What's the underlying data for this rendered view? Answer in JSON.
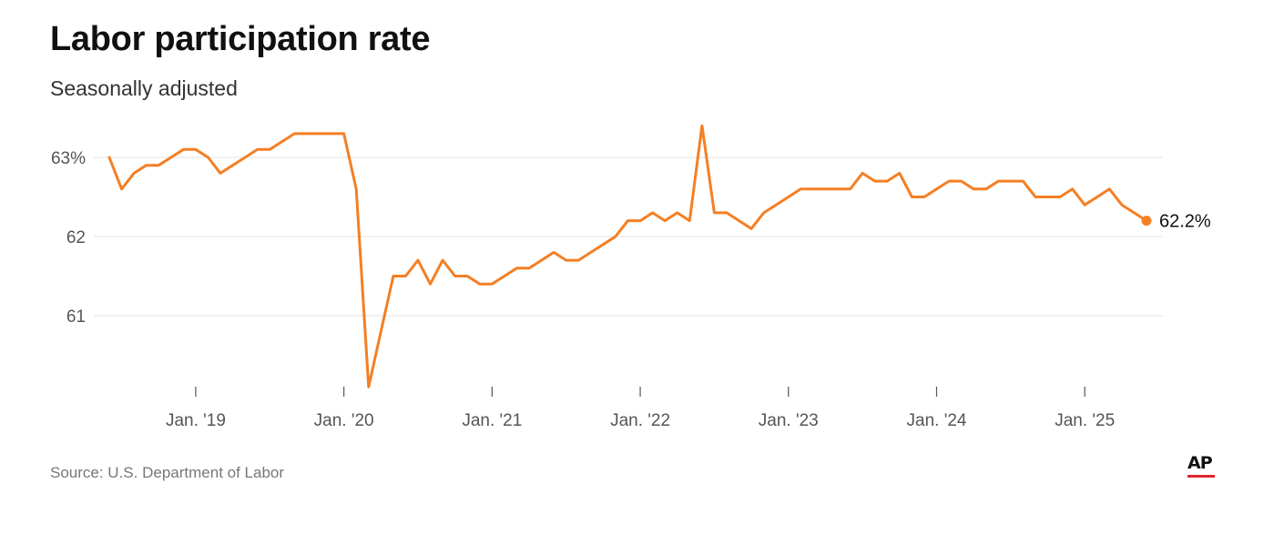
{
  "title": "Labor participation rate",
  "subtitle": "Seasonally adjusted",
  "source": "Source: U.S. Department of Labor",
  "logo": "AP",
  "colors": {
    "line": "#f47f24",
    "grid": "#e2e2e2",
    "axis_text": "#555555",
    "logo_bar": "#e5262b"
  },
  "chart_data": {
    "type": "line",
    "title": "Labor participation rate",
    "subtitle": "Seasonally adjusted",
    "xlabel": "",
    "ylabel": "",
    "ylim": [
      60.0,
      63.4
    ],
    "xlim": [
      "2018-06",
      "2025-07"
    ],
    "y_ticks": [
      {
        "value": 63,
        "label": "63%"
      },
      {
        "value": 62,
        "label": "62"
      },
      {
        "value": 61,
        "label": "61"
      }
    ],
    "x_ticks": [
      {
        "date": "2019-01",
        "label": "Jan. '19"
      },
      {
        "date": "2020-01",
        "label": "Jan. '20"
      },
      {
        "date": "2021-01",
        "label": "Jan. '21"
      },
      {
        "date": "2022-01",
        "label": "Jan. '22"
      },
      {
        "date": "2023-01",
        "label": "Jan. '23"
      },
      {
        "date": "2024-01",
        "label": "Jan. '24"
      },
      {
        "date": "2025-01",
        "label": "Jan. '25"
      }
    ],
    "grid": true,
    "end_label": "62.2%",
    "series": [
      {
        "points": [
          [
            "2018-06",
            63.0
          ],
          [
            "2018-07",
            62.6
          ],
          [
            "2018-08",
            62.8
          ],
          [
            "2018-09",
            62.9
          ],
          [
            "2018-10",
            62.9
          ],
          [
            "2018-11",
            63.0
          ],
          [
            "2018-12",
            63.1
          ],
          [
            "2019-01",
            63.1
          ],
          [
            "2019-02",
            63.0
          ],
          [
            "2019-03",
            62.8
          ],
          [
            "2019-04",
            62.9
          ],
          [
            "2019-05",
            63.0
          ],
          [
            "2019-06",
            63.1
          ],
          [
            "2019-07",
            63.1
          ],
          [
            "2019-08",
            63.2
          ],
          [
            "2019-09",
            63.3
          ],
          [
            "2019-10",
            63.3
          ],
          [
            "2019-11",
            63.3
          ],
          [
            "2019-12",
            63.3
          ],
          [
            "2020-01",
            63.3
          ],
          [
            "2020-02",
            62.6
          ],
          [
            "2020-03",
            60.1
          ],
          [
            "2020-04",
            60.8
          ],
          [
            "2020-05",
            61.5
          ],
          [
            "2020-06",
            61.5
          ],
          [
            "2020-07",
            61.7
          ],
          [
            "2020-08",
            61.4
          ],
          [
            "2020-09",
            61.7
          ],
          [
            "2020-10",
            61.5
          ],
          [
            "2020-11",
            61.5
          ],
          [
            "2020-12",
            61.4
          ],
          [
            "2021-01",
            61.4
          ],
          [
            "2021-02",
            61.5
          ],
          [
            "2021-03",
            61.6
          ],
          [
            "2021-04",
            61.6
          ],
          [
            "2021-05",
            61.7
          ],
          [
            "2021-06",
            61.8
          ],
          [
            "2021-07",
            61.7
          ],
          [
            "2021-08",
            61.7
          ],
          [
            "2021-09",
            61.8
          ],
          [
            "2021-10",
            61.9
          ],
          [
            "2021-11",
            62.0
          ],
          [
            "2021-12",
            62.2
          ],
          [
            "2022-01",
            62.2
          ],
          [
            "2022-02",
            62.3
          ],
          [
            "2022-03",
            62.2
          ],
          [
            "2022-04",
            62.3
          ],
          [
            "2022-05",
            62.2
          ],
          [
            "2022-06",
            63.4
          ],
          [
            "2022-07",
            62.3
          ],
          [
            "2022-08",
            62.3
          ],
          [
            "2022-09",
            62.2
          ],
          [
            "2022-10",
            62.1
          ],
          [
            "2022-11",
            62.3
          ],
          [
            "2022-12",
            62.4
          ],
          [
            "2023-01",
            62.5
          ],
          [
            "2023-02",
            62.6
          ],
          [
            "2023-03",
            62.6
          ],
          [
            "2023-04",
            62.6
          ],
          [
            "2023-05",
            62.6
          ],
          [
            "2023-06",
            62.6
          ],
          [
            "2023-07",
            62.8
          ],
          [
            "2023-08",
            62.7
          ],
          [
            "2023-09",
            62.7
          ],
          [
            "2023-10",
            62.8
          ],
          [
            "2023-11",
            62.5
          ],
          [
            "2023-12",
            62.5
          ],
          [
            "2024-01",
            62.6
          ],
          [
            "2024-02",
            62.7
          ],
          [
            "2024-03",
            62.7
          ],
          [
            "2024-04",
            62.6
          ],
          [
            "2024-05",
            62.6
          ],
          [
            "2024-06",
            62.7
          ],
          [
            "2024-07",
            62.7
          ],
          [
            "2024-08",
            62.7
          ],
          [
            "2024-09",
            62.5
          ],
          [
            "2024-10",
            62.5
          ],
          [
            "2024-11",
            62.5
          ],
          [
            "2024-12",
            62.6
          ],
          [
            "2025-01",
            62.4
          ],
          [
            "2025-02",
            62.5
          ],
          [
            "2025-03",
            62.6
          ],
          [
            "2025-04",
            62.4
          ],
          [
            "2025-05",
            62.3
          ],
          [
            "2025-06",
            62.2
          ]
        ]
      }
    ]
  }
}
